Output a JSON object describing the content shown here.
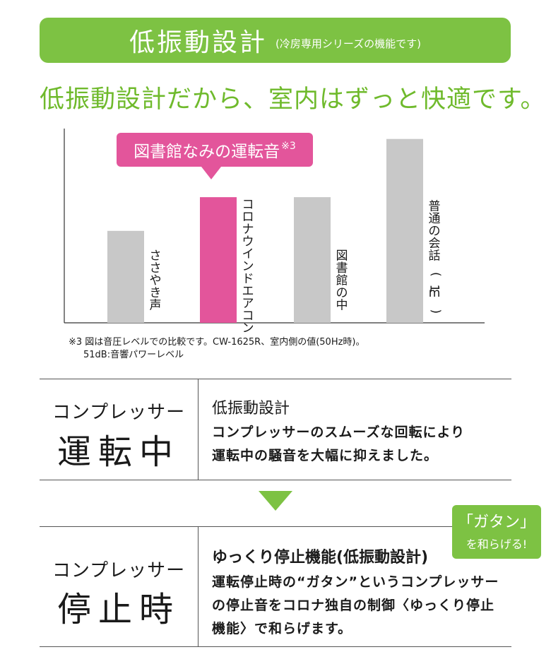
{
  "banner": {
    "title": "低振動設計",
    "subtitle": "(冷房専用シリーズの機能です)"
  },
  "headline": "低振動設計だから、室内はずっと快適です。",
  "callout": {
    "text": "図書館なみの運転音",
    "sup": "※3"
  },
  "chart_data": {
    "type": "bar",
    "categories": [
      "ささやき声",
      "コロナウインドエアコン",
      "図書館の中",
      "普通の会話(1m)"
    ],
    "values": [
      30,
      41,
      41,
      60
    ],
    "ylim": [
      0,
      65
    ],
    "highlight_color": "#e3559b",
    "bar_color": "#c8c8c8"
  },
  "notes": {
    "line1": "※3 図は音圧レベルでの比較です。CW-1625R、室内側の値(50Hz時)。",
    "line2": "51dB:音響パワーレベル"
  },
  "rows": [
    {
      "label_small": "コンプレッサー",
      "label_big": "運転中",
      "title": "低振動設計",
      "lines": [
        "コンプレッサーのスムーズな回転により",
        "運転中の騒音を大幅に抑えました。"
      ]
    },
    {
      "label_small": "コンプレッサー",
      "label_big": "停止時",
      "title": "ゆっくり停止機能(低振動設計)",
      "lines": [
        "運転停止時の“ガタン”というコンプレッサー",
        "の停止音をコロナ独自の制御〈ゆっくり停止",
        "機能〉で和らげます。"
      ]
    }
  ],
  "badge": {
    "line1": "「ガタン」",
    "line2": "を和らげる!"
  },
  "colors": {
    "green": "#7dc243",
    "pink": "#e3559b"
  }
}
